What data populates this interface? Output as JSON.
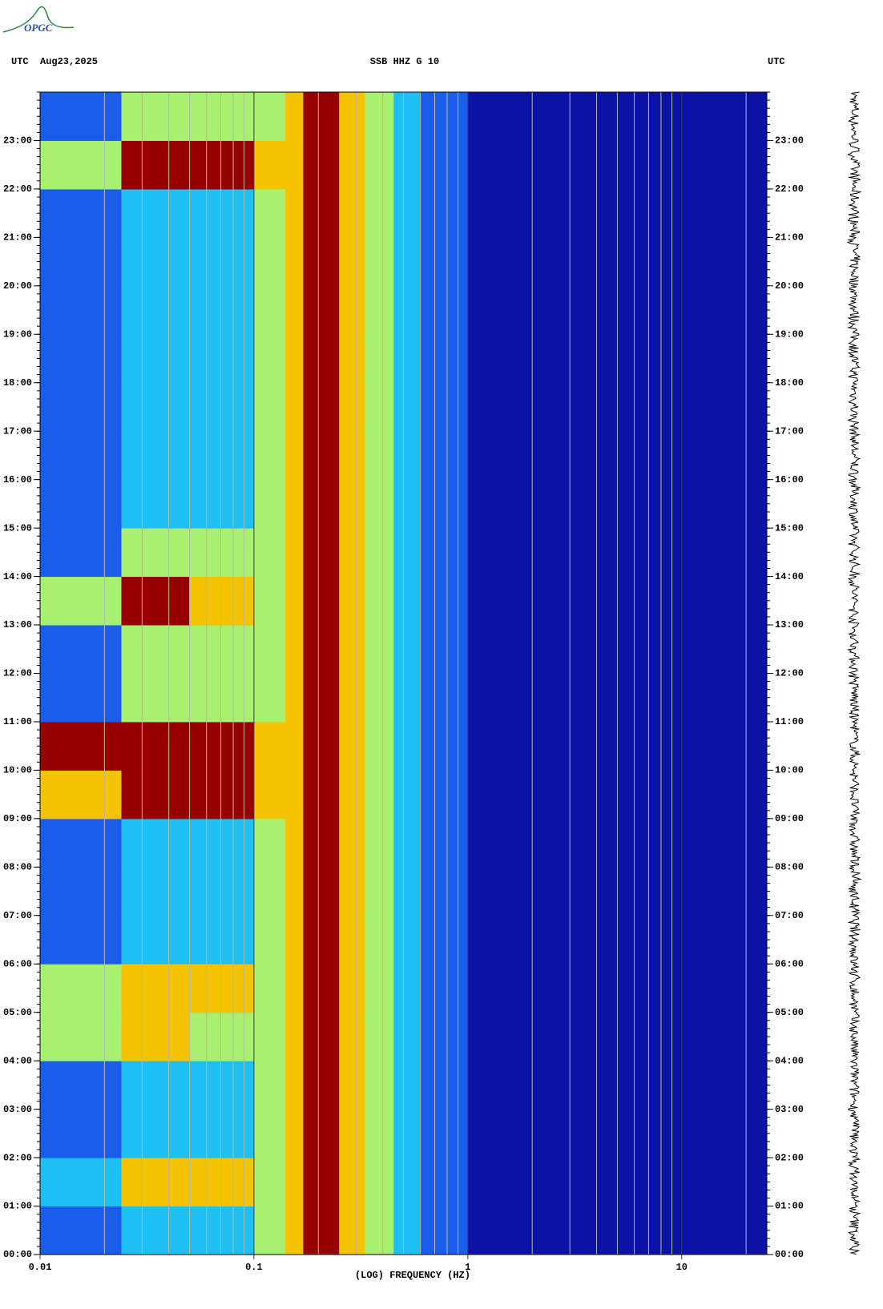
{
  "logo": "OPGC",
  "chart_data": {
    "type": "spectrogram",
    "title": "SSB HHZ G 10",
    "date": "Aug23,2025",
    "left_label": "UTC",
    "right_label": "UTC",
    "x_label": "(LOG) FREQUENCY (HZ)",
    "x_log": true,
    "xlim": [
      0.01,
      25
    ],
    "xticks": [
      0.01,
      0.1,
      1,
      10
    ],
    "xgrid": [
      0.02,
      0.03,
      0.04,
      0.05,
      0.06,
      0.07,
      0.08,
      0.09,
      0.2,
      0.3,
      0.4,
      0.5,
      0.6,
      0.7,
      0.8,
      0.9,
      2,
      3,
      4,
      5,
      6,
      7,
      8,
      9,
      20
    ],
    "ylim": [
      0,
      24
    ],
    "yticks": [
      {
        "value": 0,
        "label": "00:00"
      },
      {
        "value": 1,
        "label": "01:00"
      },
      {
        "value": 2,
        "label": "02:00"
      },
      {
        "value": 3,
        "label": "03:00"
      },
      {
        "value": 4,
        "label": "04:00"
      },
      {
        "value": 5,
        "label": "05:00"
      },
      {
        "value": 6,
        "label": "06:00"
      },
      {
        "value": 7,
        "label": "07:00"
      },
      {
        "value": 8,
        "label": "08:00"
      },
      {
        "value": 9,
        "label": "09:00"
      },
      {
        "value": 10,
        "label": "10:00"
      },
      {
        "value": 11,
        "label": "11:00"
      },
      {
        "value": 12,
        "label": "12:00"
      },
      {
        "value": 13,
        "label": "13:00"
      },
      {
        "value": 14,
        "label": "14:00"
      },
      {
        "value": 15,
        "label": "15:00"
      },
      {
        "value": 16,
        "label": "16:00"
      },
      {
        "value": 17,
        "label": "17:00"
      },
      {
        "value": 18,
        "label": "18:00"
      },
      {
        "value": 19,
        "label": "19:00"
      },
      {
        "value": 20,
        "label": "20:00"
      },
      {
        "value": 21,
        "label": "21:00"
      },
      {
        "value": 22,
        "label": "22:00"
      },
      {
        "value": 23,
        "label": "23:00"
      }
    ],
    "bands": [
      0.01,
      0.024,
      0.05,
      0.1,
      0.14,
      0.17,
      0.25,
      0.33,
      0.45,
      0.6,
      1,
      25
    ],
    "colors": [
      "#0c12a6",
      "#1a5cec",
      "#1cc0f4",
      "#a8f070",
      "#f4c400",
      "#960000"
    ],
    "intensity": [
      [
        1,
        2,
        2,
        3,
        4,
        5,
        4,
        3,
        2,
        1,
        0
      ],
      [
        2,
        4,
        4,
        3,
        4,
        5,
        4,
        3,
        2,
        1,
        0
      ],
      [
        1,
        2,
        2,
        3,
        4,
        5,
        4,
        3,
        2,
        1,
        0
      ],
      [
        1,
        2,
        2,
        3,
        4,
        5,
        4,
        3,
        2,
        1,
        0
      ],
      [
        3,
        4,
        3,
        3,
        4,
        5,
        4,
        3,
        2,
        1,
        0
      ],
      [
        3,
        4,
        4,
        3,
        4,
        5,
        4,
        3,
        2,
        1,
        0
      ],
      [
        1,
        2,
        2,
        3,
        4,
        5,
        4,
        3,
        2,
        1,
        0
      ],
      [
        1,
        2,
        2,
        3,
        4,
        5,
        4,
        3,
        2,
        1,
        0
      ],
      [
        1,
        2,
        2,
        3,
        4,
        5,
        4,
        3,
        2,
        1,
        0
      ],
      [
        4,
        5,
        5,
        4,
        4,
        5,
        4,
        3,
        2,
        1,
        0
      ],
      [
        5,
        5,
        5,
        4,
        4,
        5,
        4,
        3,
        2,
        1,
        0
      ],
      [
        1,
        3,
        3,
        3,
        4,
        5,
        4,
        3,
        2,
        1,
        0
      ],
      [
        1,
        3,
        3,
        3,
        4,
        5,
        4,
        3,
        2,
        1,
        0
      ],
      [
        3,
        5,
        4,
        3,
        4,
        5,
        4,
        3,
        2,
        1,
        0
      ],
      [
        1,
        3,
        3,
        3,
        4,
        5,
        4,
        3,
        2,
        1,
        0
      ],
      [
        1,
        2,
        2,
        3,
        4,
        5,
        4,
        3,
        2,
        1,
        0
      ],
      [
        1,
        2,
        2,
        3,
        4,
        5,
        4,
        3,
        2,
        1,
        0
      ],
      [
        1,
        2,
        2,
        3,
        4,
        5,
        4,
        3,
        2,
        1,
        0
      ],
      [
        1,
        2,
        2,
        3,
        4,
        5,
        4,
        3,
        2,
        1,
        0
      ],
      [
        1,
        2,
        2,
        3,
        4,
        5,
        4,
        3,
        2,
        1,
        0
      ],
      [
        1,
        2,
        2,
        3,
        4,
        5,
        4,
        3,
        2,
        1,
        0
      ],
      [
        1,
        2,
        2,
        3,
        4,
        5,
        4,
        3,
        2,
        1,
        0
      ],
      [
        3,
        5,
        5,
        4,
        4,
        5,
        4,
        3,
        2,
        1,
        0
      ],
      [
        1,
        3,
        3,
        3,
        4,
        5,
        4,
        3,
        2,
        1,
        0
      ]
    ]
  }
}
